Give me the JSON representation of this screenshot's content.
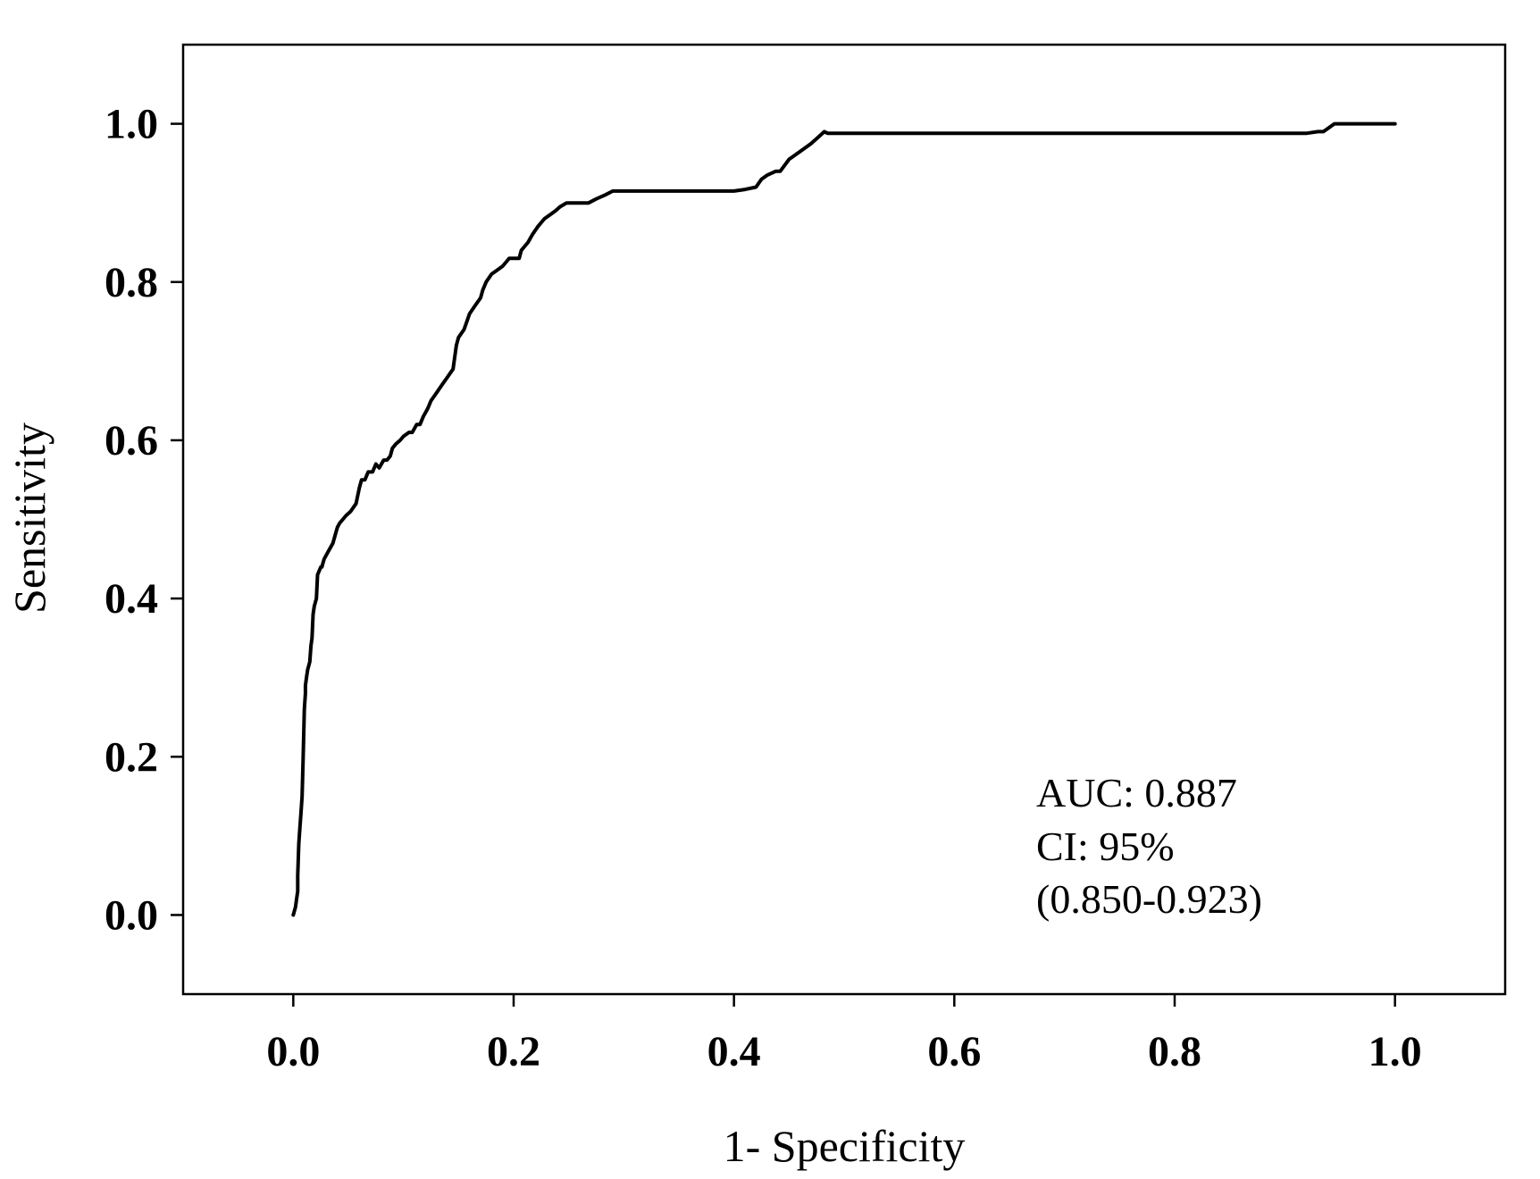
{
  "chart_data": {
    "type": "line",
    "title": "",
    "xlabel": "1- Specificity",
    "ylabel": "Sensitivity",
    "xlim": [
      -0.1,
      1.1
    ],
    "ylim": [
      -0.1,
      1.1
    ],
    "grid": false,
    "xticks": [
      0.0,
      0.2,
      0.4,
      0.6,
      0.8,
      1.0
    ],
    "yticks": [
      0.0,
      0.2,
      0.4,
      0.6,
      0.8,
      1.0
    ],
    "xtick_labels": [
      "0.0",
      "0.2",
      "0.4",
      "0.6",
      "0.8",
      "1.0"
    ],
    "ytick_labels": [
      "0.0",
      "0.2",
      "0.4",
      "0.6",
      "0.8",
      "1.0"
    ],
    "series": [
      {
        "color": "#000000",
        "x": [
          0.0,
          0.002,
          0.003,
          0.004,
          0.004,
          0.005,
          0.006,
          0.007,
          0.008,
          0.009,
          0.01,
          0.011,
          0.011,
          0.012,
          0.013,
          0.015,
          0.016,
          0.017,
          0.018,
          0.019,
          0.021,
          0.022,
          0.025,
          0.026,
          0.027,
          0.028,
          0.032,
          0.036,
          0.038,
          0.04,
          0.042,
          0.045,
          0.048,
          0.052,
          0.057,
          0.06,
          0.062,
          0.065,
          0.068,
          0.072,
          0.075,
          0.078,
          0.082,
          0.085,
          0.088,
          0.09,
          0.093,
          0.097,
          0.1,
          0.105,
          0.108,
          0.112,
          0.115,
          0.118,
          0.122,
          0.125,
          0.13,
          0.135,
          0.14,
          0.145,
          0.148,
          0.15,
          0.155,
          0.16,
          0.165,
          0.17,
          0.172,
          0.175,
          0.18,
          0.185,
          0.19,
          0.193,
          0.196,
          0.2,
          0.205,
          0.207,
          0.21,
          0.213,
          0.217,
          0.222,
          0.228,
          0.233,
          0.238,
          0.242,
          0.248,
          0.255,
          0.262,
          0.268,
          0.275,
          0.283,
          0.29,
          0.3,
          0.32,
          0.35,
          0.38,
          0.4,
          0.41,
          0.42,
          0.425,
          0.43,
          0.438,
          0.442,
          0.45,
          0.46,
          0.47,
          0.478,
          0.482,
          0.485,
          0.5,
          0.6,
          0.7,
          0.8,
          0.9,
          0.92,
          0.93,
          0.935,
          0.94,
          0.945,
          0.95,
          0.96,
          0.98,
          1.0
        ],
        "y": [
          0.0,
          0.01,
          0.02,
          0.03,
          0.05,
          0.09,
          0.11,
          0.13,
          0.15,
          0.2,
          0.26,
          0.28,
          0.29,
          0.3,
          0.31,
          0.32,
          0.34,
          0.35,
          0.38,
          0.39,
          0.4,
          0.43,
          0.44,
          0.44,
          0.445,
          0.45,
          0.46,
          0.47,
          0.48,
          0.49,
          0.495,
          0.5,
          0.505,
          0.51,
          0.52,
          0.54,
          0.55,
          0.55,
          0.56,
          0.56,
          0.57,
          0.565,
          0.575,
          0.575,
          0.58,
          0.59,
          0.595,
          0.6,
          0.605,
          0.61,
          0.61,
          0.62,
          0.62,
          0.63,
          0.64,
          0.65,
          0.66,
          0.67,
          0.68,
          0.69,
          0.72,
          0.73,
          0.74,
          0.76,
          0.77,
          0.78,
          0.79,
          0.8,
          0.81,
          0.815,
          0.82,
          0.825,
          0.83,
          0.83,
          0.83,
          0.84,
          0.845,
          0.85,
          0.86,
          0.87,
          0.88,
          0.885,
          0.89,
          0.895,
          0.9,
          0.9,
          0.9,
          0.9,
          0.905,
          0.91,
          0.915,
          0.915,
          0.915,
          0.915,
          0.915,
          0.915,
          0.917,
          0.92,
          0.93,
          0.935,
          0.94,
          0.94,
          0.955,
          0.965,
          0.975,
          0.985,
          0.99,
          0.988,
          0.988,
          0.988,
          0.988,
          0.988,
          0.988,
          0.988,
          0.99,
          0.99,
          0.995,
          1.0,
          1.0,
          1.0,
          1.0,
          1.0
        ]
      }
    ],
    "annotations": [
      "AUC: 0.887",
      "CI: 95%",
      "(0.850-0.923)"
    ]
  }
}
